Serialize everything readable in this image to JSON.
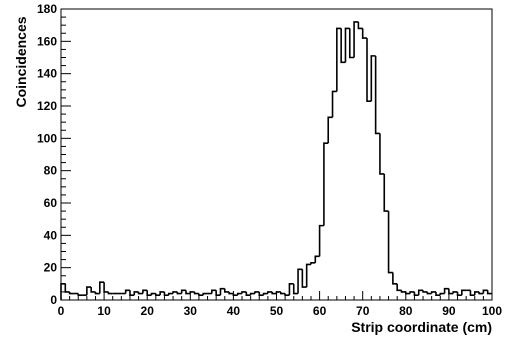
{
  "chart_data": {
    "type": "bar",
    "title": "",
    "xlabel": "Strip coordinate (cm)",
    "ylabel": "Coincidences",
    "xlim": [
      0,
      100
    ],
    "ylim": [
      0,
      180
    ],
    "grid": false,
    "bin_width": 1,
    "x_ticks": [
      0,
      10,
      20,
      30,
      40,
      50,
      60,
      70,
      80,
      90,
      100
    ],
    "y_ticks": [
      0,
      20,
      40,
      60,
      80,
      100,
      120,
      140,
      160,
      180
    ],
    "bin_edges_start": 0,
    "values": [
      10,
      5,
      4,
      4,
      3,
      3,
      8,
      5,
      4,
      11,
      5,
      4,
      4,
      4,
      4,
      6,
      3,
      5,
      4,
      6,
      3,
      4,
      3,
      5,
      3,
      4,
      5,
      4,
      6,
      4,
      5,
      4,
      3,
      4,
      4,
      6,
      3,
      7,
      5,
      4,
      3,
      4,
      5,
      3,
      4,
      5,
      3,
      4,
      5,
      4,
      5,
      4,
      3,
      10,
      4,
      19,
      8,
      22,
      23,
      27,
      46,
      97,
      113,
      129,
      168,
      147,
      168,
      150,
      172,
      168,
      162,
      123,
      151,
      103,
      78,
      55,
      17,
      10,
      6,
      5,
      4,
      5,
      3,
      6,
      5,
      4,
      5,
      3,
      4,
      7,
      4,
      5,
      3,
      6,
      6,
      3,
      5,
      4,
      6,
      4
    ]
  }
}
